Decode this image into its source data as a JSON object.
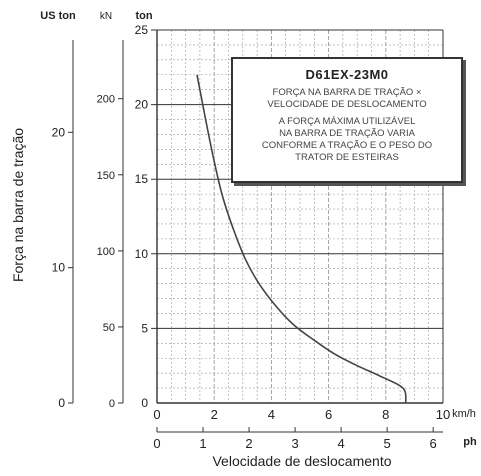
{
  "chart_data": {
    "type": "line",
    "ylabel": "Força na barra de tração",
    "xlabel": "Velocidade de deslocamento",
    "axes": {
      "us_ton": {
        "unit": "US ton",
        "ticks": [
          "0",
          "10",
          "20"
        ]
      },
      "kn": {
        "unit": "kN",
        "ticks": [
          "0",
          "50",
          "100",
          "150",
          "200"
        ]
      },
      "ton": {
        "unit": "ton",
        "ticks": [
          "0",
          "5",
          "10",
          "15",
          "20",
          "25"
        ],
        "ylim": [
          0,
          25
        ]
      },
      "kmh": {
        "unit": "km/h",
        "ticks": [
          "0",
          "2",
          "4",
          "6",
          "8",
          "10"
        ],
        "xlim": [
          0,
          10
        ]
      },
      "mph": {
        "unit": "ph",
        "ticks": [
          "0",
          "1",
          "2",
          "3",
          "4",
          "5",
          "6"
        ]
      }
    },
    "series": [
      {
        "x": [
          1.4,
          1.7,
          2.0,
          2.3,
          2.7,
          3.1,
          3.6,
          4.2,
          4.8,
          5.5,
          6.2,
          7.0,
          7.8,
          8.6,
          8.7
        ],
        "y": [
          22.0,
          19.0,
          16.2,
          13.8,
          11.5,
          9.6,
          7.9,
          6.4,
          5.2,
          4.2,
          3.3,
          2.5,
          1.8,
          1.0,
          0.0
        ]
      }
    ],
    "grid": true
  },
  "note": {
    "title": "D61EX-23M0",
    "line1": "FORÇA NA BARRA DE TRAÇÃO ×",
    "line2": "VELOCIDADE DE DESLOCAMENTO",
    "line3": "A FORÇA MÁXIMA UTILIZÁVEL",
    "line4": "NA BARRA DE TRAÇÃO VARIA",
    "line5": "CONFORME A TRAÇÃO E O PESO DO",
    "line6": "TRATOR DE ESTEIRAS"
  },
  "colors": {
    "curve": "#444444",
    "grid": "#9a9a9a",
    "axis": "#333333"
  }
}
